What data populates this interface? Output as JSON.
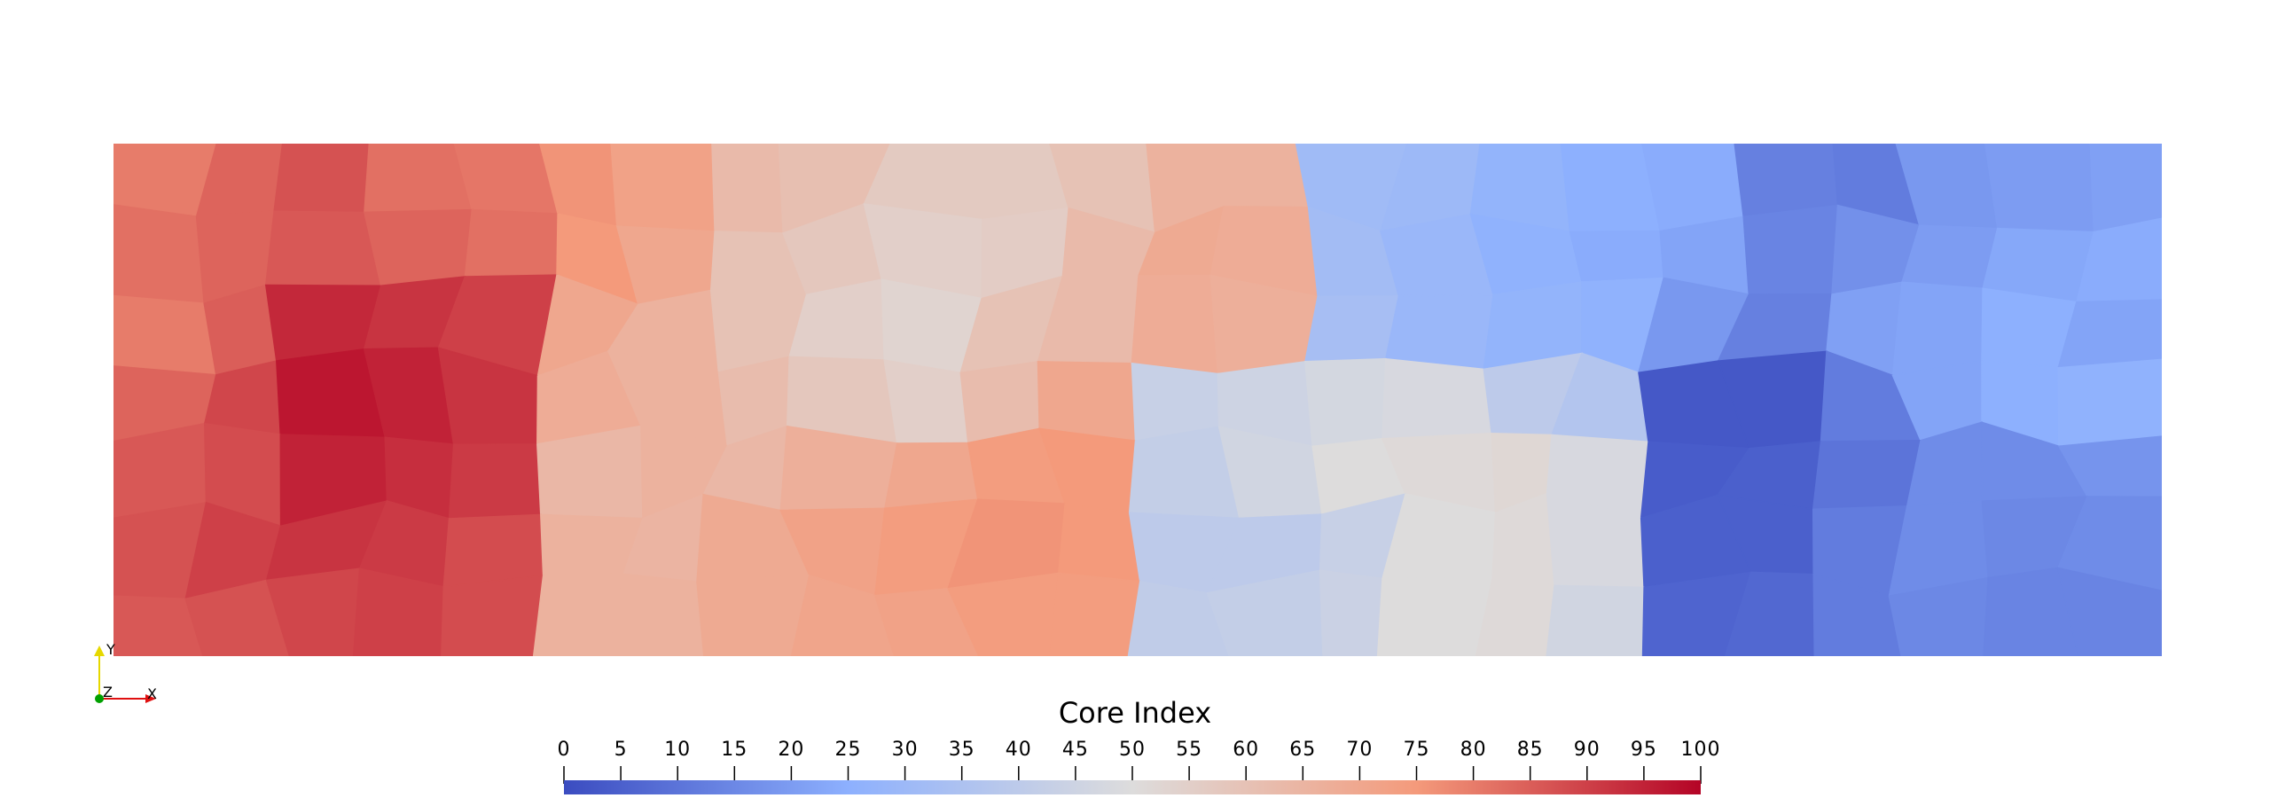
{
  "scalar_bar": {
    "title": "Core Index",
    "range": [
      0,
      100
    ],
    "ticks": [
      "0",
      "5",
      "10",
      "15",
      "20",
      "25",
      "30",
      "35",
      "40",
      "45",
      "50",
      "55",
      "60",
      "65",
      "70",
      "75",
      "80",
      "85",
      "90",
      "95",
      "100"
    ],
    "colormap": [
      "#3b4cc0",
      "#8db0fe",
      "#dddcdc",
      "#f49a7b",
      "#b40426"
    ]
  },
  "orientation_axes": {
    "y_label": "Y",
    "z_label": "Z",
    "x_label": "X",
    "y_color": "#e6d800",
    "x_color": "#e01010",
    "z_color": "#00a000"
  },
  "chart_data": {
    "type": "heatmap",
    "title": "",
    "colorbar_title": "Core Index",
    "value_range": [
      0,
      100
    ],
    "grid_rows": 7,
    "grid_cols": 24,
    "values": [
      [
        80,
        84,
        87,
        82,
        81,
        76,
        72,
        63,
        61,
        57,
        57,
        60,
        66,
        66,
        31,
        30,
        27,
        25,
        24,
        13,
        12,
        19,
        20,
        21
      ],
      [
        82,
        84,
        86,
        84,
        82,
        75,
        70,
        60,
        58,
        55,
        56,
        63,
        69,
        68,
        32,
        29,
        26,
        24,
        22,
        14,
        17,
        20,
        23,
        24
      ],
      [
        80,
        85,
        94,
        92,
        90,
        70,
        66,
        60,
        55,
        53,
        60,
        63,
        68,
        67,
        33,
        29,
        27,
        26,
        19,
        13,
        21,
        22,
        25,
        22
      ],
      [
        84,
        89,
        97,
        95,
        92,
        68,
        66,
        62,
        58,
        55,
        62,
        70,
        43,
        45,
        47,
        48,
        40,
        37,
        3,
        3,
        12,
        22,
        25,
        26
      ],
      [
        86,
        88,
        95,
        93,
        91,
        64,
        66,
        64,
        67,
        70,
        74,
        75,
        42,
        46,
        50,
        51,
        52,
        48,
        4,
        5,
        10,
        16,
        16,
        18
      ],
      [
        87,
        90,
        92,
        91,
        88,
        66,
        65,
        69,
        72,
        74,
        76,
        75,
        40,
        40,
        43,
        50,
        51,
        48,
        5,
        5,
        12,
        16,
        15,
        16
      ],
      [
        86,
        87,
        89,
        90,
        88,
        66,
        66,
        69,
        71,
        72,
        74,
        74,
        41,
        42,
        44,
        50,
        51,
        46,
        6,
        7,
        12,
        15,
        14,
        14
      ]
    ]
  }
}
